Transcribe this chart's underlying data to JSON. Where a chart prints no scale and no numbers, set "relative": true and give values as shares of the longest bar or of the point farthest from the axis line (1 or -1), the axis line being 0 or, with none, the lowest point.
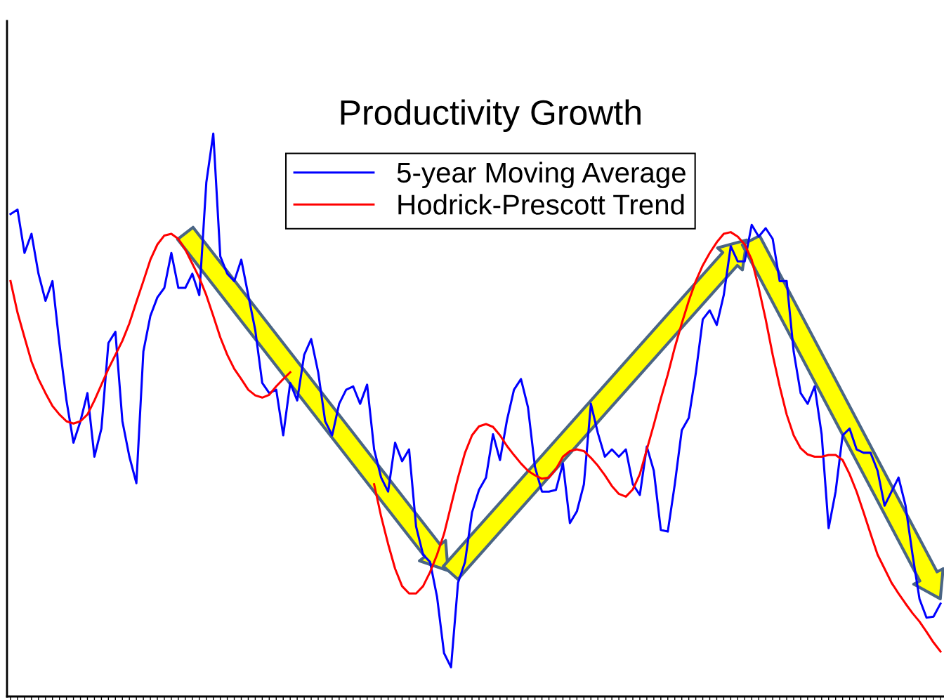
{
  "chart_data": {
    "type": "line",
    "title": "Productivity Growth",
    "relative": true,
    "legend": "top",
    "grid": false,
    "categories": [
      null,
      null,
      null,
      null,
      null,
      null,
      null,
      null,
      null,
      null,
      null,
      null,
      null,
      null,
      null,
      null,
      null,
      null,
      null,
      null,
      null,
      null,
      null,
      null,
      null,
      null,
      null,
      null,
      null,
      null,
      null,
      null,
      null,
      null,
      null,
      null,
      null,
      null,
      null,
      null,
      null,
      null,
      null,
      null,
      null,
      null,
      null,
      null,
      null,
      null,
      null,
      null,
      null,
      null,
      null,
      null,
      null,
      null,
      null,
      null,
      null,
      null,
      null,
      null,
      null,
      null,
      null,
      null,
      null,
      null,
      null,
      null,
      null,
      null,
      null,
      null,
      null,
      null,
      null,
      null,
      null,
      null,
      null,
      null,
      null,
      null,
      null,
      null,
      null,
      null,
      null,
      null,
      null,
      null,
      null,
      null,
      null,
      null,
      null,
      null,
      null,
      null,
      null,
      null,
      null,
      null,
      null,
      null,
      null,
      null,
      null,
      null,
      null,
      null,
      null,
      null,
      null,
      null,
      null,
      null,
      null,
      null,
      null,
      null,
      null,
      null,
      null,
      null,
      null,
      null,
      null,
      null,
      null,
      null
    ],
    "series": [
      {
        "name": "5-year Moving Average",
        "color": "#0000ff",
        "values": [
          0.857,
          0.865,
          0.788,
          0.822,
          0.751,
          0.703,
          0.738,
          0.626,
          0.526,
          0.451,
          0.489,
          0.539,
          0.426,
          0.476,
          0.628,
          0.648,
          0.489,
          0.426,
          0.379,
          0.613,
          0.676,
          0.709,
          0.726,
          0.788,
          0.726,
          0.726,
          0.751,
          0.713,
          0.913,
          1.0,
          0.782,
          0.751,
          0.738,
          0.776,
          0.713,
          0.651,
          0.557,
          0.539,
          0.545,
          0.464,
          0.557,
          0.526,
          0.607,
          0.635,
          0.576,
          0.489,
          0.464,
          0.52,
          0.545,
          0.551,
          0.52,
          0.554,
          0.439,
          0.389,
          0.364,
          0.451,
          0.418,
          0.439,
          0.302,
          0.252,
          0.239,
          0.177,
          0.077,
          0.052,
          0.202,
          0.239,
          0.327,
          0.367,
          0.389,
          0.466,
          0.42,
          0.491,
          0.545,
          0.564,
          0.514,
          0.408,
          0.364,
          0.364,
          0.367,
          0.414,
          0.308,
          0.329,
          0.377,
          0.52,
          0.468,
          0.426,
          0.439,
          0.426,
          0.439,
          0.377,
          0.358,
          0.444,
          0.401,
          0.296,
          0.293,
          0.377,
          0.473,
          0.495,
          0.574,
          0.67,
          0.686,
          0.66,
          0.713,
          0.8,
          0.773,
          0.773,
          0.838,
          0.817,
          0.832,
          0.813,
          0.738,
          0.738,
          0.613,
          0.539,
          0.52,
          0.551,
          0.466,
          0.299,
          0.364,
          0.464,
          0.476,
          0.439,
          0.433,
          0.433,
          0.401,
          0.339,
          0.364,
          0.389,
          0.339,
          0.252,
          0.173,
          0.14,
          0.142,
          0.165
        ]
      },
      {
        "name": "Hodrick-Prescott Trend",
        "color": "#ff0000",
        "values": [
          0.738,
          0.682,
          0.638,
          0.595,
          0.564,
          0.539,
          0.516,
          0.501,
          0.489,
          0.485,
          0.489,
          0.501,
          0.526,
          0.554,
          0.582,
          0.607,
          0.632,
          0.663,
          0.701,
          0.738,
          0.776,
          0.803,
          0.819,
          0.822,
          0.813,
          0.794,
          0.769,
          0.744,
          0.713,
          0.676,
          0.638,
          0.607,
          0.582,
          0.564,
          0.545,
          0.535,
          0.531,
          0.536,
          0.551,
          0.564,
          0.576,
          null,
          null,
          null,
          null,
          null,
          null,
          null,
          null,
          null,
          null,
          null,
          0.377,
          0.32,
          0.271,
          0.227,
          0.196,
          0.183,
          0.183,
          0.196,
          0.221,
          0.252,
          0.289,
          0.339,
          0.389,
          0.433,
          0.464,
          0.48,
          0.484,
          0.479,
          0.464,
          0.445,
          0.429,
          0.414,
          0.401,
          0.393,
          0.387,
          0.389,
          0.404,
          0.426,
          0.436,
          0.439,
          0.436,
          0.424,
          0.41,
          0.393,
          0.374,
          0.36,
          0.355,
          0.368,
          0.395,
          0.439,
          0.483,
          0.529,
          0.572,
          0.62,
          0.663,
          0.703,
          0.738,
          0.766,
          0.788,
          0.807,
          0.822,
          0.825,
          0.817,
          0.803,
          0.776,
          0.726,
          0.67,
          0.607,
          0.551,
          0.501,
          0.464,
          0.441,
          0.43,
          0.426,
          0.426,
          0.429,
          0.429,
          0.42,
          0.395,
          0.364,
          0.327,
          0.289,
          0.252,
          0.227,
          0.202,
          0.183,
          0.165,
          0.148,
          0.133,
          0.115,
          0.096,
          0.08
        ]
      }
    ]
  }
}
